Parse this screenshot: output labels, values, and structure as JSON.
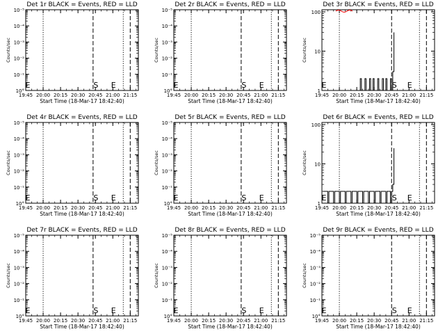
{
  "panels": [
    {
      "title": "Det 1r BLACK = Events, RED = LLD",
      "ylabel": "Counts/sec",
      "xlabel": "Start Time (18-Mar-17 18:42:40)",
      "yscale": "decade",
      "ytick_labels": [
        "10°",
        "10⁻¹",
        "10⁻²",
        "10⁻³",
        "10⁻⁴",
        "10⁻⁵"
      ],
      "xtick_labels": [
        "19:45",
        "20:00",
        "20:15",
        "20:30",
        "20:45",
        "21:00",
        "21:15"
      ],
      "markers": [
        "E",
        "S",
        "E"
      ]
    },
    {
      "title": "Det 2r BLACK = Events, RED = LLD",
      "ylabel": "Counts/sec",
      "xlabel": "Start Time (18-Mar-17 18:42:40)",
      "yscale": "decade",
      "ytick_labels": [
        "10°",
        "10⁻¹",
        "10⁻²",
        "10⁻³",
        "10⁻⁴",
        "10⁻⁵"
      ],
      "xtick_labels": [
        "19:45",
        "20:00",
        "20:15",
        "20:30",
        "20:45",
        "21:00",
        "21:15"
      ],
      "markers": [
        "E",
        "S",
        "E"
      ]
    },
    {
      "title": "Det 3r BLACK = Events, RED = LLD",
      "ylabel": "Counts/sec",
      "xlabel": "Start Time (18-Mar-17 18:42:40)",
      "yscale": "counts",
      "ytick_labels": [
        "1",
        "10",
        "100"
      ],
      "xtick_labels": [
        "19:45",
        "20:00",
        "20:15",
        "20:30",
        "20:45",
        "21:00",
        "21:15"
      ],
      "markers": [
        "E",
        "S",
        "E"
      ]
    },
    {
      "title": "Det 4r BLACK = Events, RED = LLD",
      "ylabel": "Counts/sec",
      "xlabel": "Start Time (18-Mar-17 18:42:40)",
      "yscale": "decade",
      "ytick_labels": [
        "10°",
        "10⁻¹",
        "10⁻²",
        "10⁻³",
        "10⁻⁴",
        "10⁻⁵"
      ],
      "xtick_labels": [
        "19:45",
        "20:00",
        "20:15",
        "20:30",
        "20:45",
        "21:00",
        "21:15"
      ],
      "markers": [
        "E",
        "S",
        "E"
      ]
    },
    {
      "title": "Det 5r BLACK = Events, RED = LLD",
      "ylabel": "Counts/sec",
      "xlabel": "Start Time (18-Mar-17 18:42:40)",
      "yscale": "decade",
      "ytick_labels": [
        "10°",
        "10⁻¹",
        "10⁻²",
        "10⁻³",
        "10⁻⁴",
        "10⁻⁵"
      ],
      "xtick_labels": [
        "19:45",
        "20:00",
        "20:15",
        "20:30",
        "20:45",
        "21:00",
        "21:15"
      ],
      "markers": [
        "E",
        "S",
        "E"
      ]
    },
    {
      "title": "Det 6r BLACK = Events, RED = LLD",
      "ylabel": "Counts/sec",
      "xlabel": "Start Time (18-Mar-17 18:42:40)",
      "yscale": "counts",
      "ytick_labels": [
        "1",
        "10",
        "100"
      ],
      "xtick_labels": [
        "19:45",
        "20:00",
        "20:15",
        "20:30",
        "20:45",
        "21:00",
        "21:15"
      ],
      "markers": [
        "E",
        "S",
        "E"
      ]
    },
    {
      "title": "Det 7r BLACK = Events, RED = LLD",
      "ylabel": "Counts/sec",
      "xlabel": "Start Time (18-Mar-17 18:42:40)",
      "yscale": "decade",
      "ytick_labels": [
        "10°",
        "10⁻¹",
        "10⁻²",
        "10⁻³",
        "10⁻⁴",
        "10⁻⁵"
      ],
      "xtick_labels": [
        "19:45",
        "20:00",
        "20:15",
        "20:30",
        "20:45",
        "21:00",
        "21:15"
      ],
      "markers": [
        "E",
        "S",
        "E"
      ]
    },
    {
      "title": "Det 8r BLACK = Events, RED = LLD",
      "ylabel": "Counts/sec",
      "xlabel": "Start Time (18-Mar-17 18:42:40)",
      "yscale": "decade",
      "ytick_labels": [
        "10°",
        "10⁻¹",
        "10⁻²",
        "10⁻³",
        "10⁻⁴",
        "10⁻⁵"
      ],
      "xtick_labels": [
        "19:45",
        "20:00",
        "20:15",
        "20:30",
        "20:45",
        "21:00",
        "21:15"
      ],
      "markers": [
        "E",
        "S",
        "E"
      ]
    },
    {
      "title": "Det 9r BLACK = Events, RED = LLD",
      "ylabel": "Counts/sec",
      "xlabel": "Start Time (18-Mar-17 18:42:40)",
      "yscale": "decade",
      "ytick_labels": [
        "10°",
        "10⁻¹",
        "10⁻²",
        "10⁻³",
        "10⁻⁴",
        "10⁻⁵"
      ],
      "xtick_labels": [
        "19:45",
        "20:00",
        "20:15",
        "20:30",
        "20:45",
        "21:00",
        "21:15"
      ],
      "markers": [
        "E",
        "S",
        "E"
      ]
    }
  ],
  "chart_data": [
    {
      "type": "line",
      "title": "Det 1r BLACK = Events, RED = LLD",
      "ylabel": "Counts/sec",
      "xlabel": "Start Time (18-Mar-17 18:42:40)",
      "series": [],
      "vlines": {
        "dotted": [
          "20:00",
          "21:09"
        ],
        "dashed": [
          "20:43",
          "21:15"
        ]
      }
    },
    {
      "type": "line",
      "title": "Det 2r BLACK = Events, RED = LLD",
      "ylabel": "Counts/sec",
      "xlabel": "Start Time (18-Mar-17 18:42:40)",
      "series": [],
      "vlines": {
        "dotted": [
          "20:00",
          "21:09"
        ],
        "dashed": [
          "20:43",
          "21:15"
        ]
      }
    },
    {
      "type": "line",
      "title": "Det 3r BLACK = Events, RED = LLD",
      "ylabel": "Counts/sec",
      "xlabel": "Start Time (18-Mar-17 18:42:40)",
      "ylim": [
        1,
        100
      ],
      "yscale": "log",
      "series": [
        {
          "color": "#000000",
          "x": [
            "20:15",
            "20:18",
            "20:19",
            "20:22",
            "20:23",
            "20:26",
            "20:27",
            "20:29",
            "20:30",
            "20:33",
            "20:34",
            "20:37",
            "20:38",
            "20:40",
            "20:41",
            "20:44",
            "20:45",
            "20:46",
            "20:47"
          ],
          "y": [
            1,
            2,
            1,
            2,
            1,
            2,
            1,
            2,
            1,
            2,
            1,
            2,
            1,
            2,
            1,
            2,
            1,
            3,
            30
          ]
        }
      ],
      "vlines": {
        "dotted": [
          "20:00",
          "21:09"
        ],
        "dashed": [
          "20:45",
          "21:15"
        ]
      }
    },
    {
      "type": "line",
      "title": "Det 4r BLACK = Events, RED = LLD",
      "ylabel": "Counts/sec",
      "xlabel": "Start Time (18-Mar-17 18:42:40)",
      "series": [],
      "vlines": {
        "dotted": [
          "20:00",
          "21:09"
        ],
        "dashed": [
          "20:43",
          "21:15"
        ]
      }
    },
    {
      "type": "line",
      "title": "Det 5r BLACK = Events, RED = LLD",
      "ylabel": "Counts/sec",
      "xlabel": "Start Time (18-Mar-17 18:42:40)",
      "series": [],
      "vlines": {
        "dotted": [
          "20:00",
          "21:09"
        ],
        "dashed": [
          "20:43",
          "21:15"
        ]
      }
    },
    {
      "type": "line",
      "title": "Det 6r BLACK = Events, RED = LLD",
      "ylabel": "Counts/sec",
      "xlabel": "Start Time (18-Mar-17 18:42:40)",
      "ylim": [
        1,
        100
      ],
      "yscale": "log",
      "series": [
        {
          "color": "#000000",
          "x": [
            "19:46",
            "19:50",
            "19:51",
            "19:55",
            "19:56",
            "20:00",
            "20:01",
            "20:05",
            "20:06",
            "20:10",
            "20:11",
            "20:15",
            "20:16",
            "20:20",
            "20:21",
            "20:25",
            "20:26",
            "20:30",
            "20:31",
            "20:35",
            "20:36",
            "20:40",
            "20:41",
            "20:44",
            "20:45",
            "20:46",
            "20:47"
          ],
          "y": [
            2,
            1,
            2,
            1,
            2,
            1,
            2,
            1,
            2,
            1,
            2,
            1,
            2,
            1,
            2,
            1,
            2,
            1,
            2,
            1,
            2,
            1,
            2,
            1,
            2,
            3,
            25
          ]
        }
      ],
      "vlines": {
        "dotted": [
          "20:00",
          "21:09"
        ],
        "dashed": [
          "20:45",
          "21:15"
        ]
      }
    },
    {
      "type": "line",
      "title": "Det 7r BLACK = Events, RED = LLD",
      "ylabel": "Counts/sec",
      "xlabel": "Start Time (18-Mar-17 18:42:40)",
      "series": [],
      "vlines": {
        "dotted": [
          "20:00",
          "21:09"
        ],
        "dashed": [
          "20:43",
          "21:15"
        ]
      }
    },
    {
      "type": "line",
      "title": "Det 8r BLACK = Events, RED = LLD",
      "ylabel": "Counts/sec",
      "xlabel": "Start Time (18-Mar-17 18:42:40)",
      "series": [],
      "vlines": {
        "dotted": [
          "20:00",
          "21:09"
        ],
        "dashed": [
          "20:43",
          "21:15"
        ]
      }
    },
    {
      "type": "line",
      "title": "Det 9r BLACK = Events, RED = LLD",
      "ylabel": "Counts/sec",
      "xlabel": "Start Time (18-Mar-17 18:42:40)",
      "series": [],
      "vlines": {
        "dotted": [
          "20:00",
          "21:09"
        ],
        "dashed": [
          "20:45",
          "21:15"
        ]
      }
    }
  ]
}
